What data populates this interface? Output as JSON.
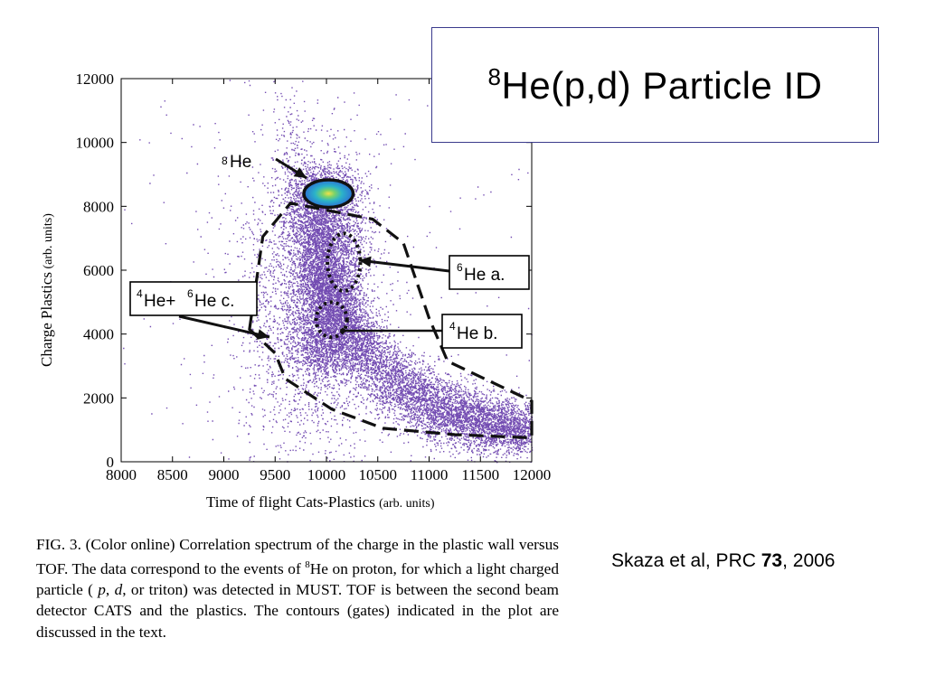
{
  "slide": {
    "title_sup": "8",
    "title_main": "He(p,d) Particle ID",
    "citation_prefix": "Skaza et al, PRC ",
    "citation_volume": "73",
    "citation_suffix": ", 2006"
  },
  "caption": {
    "lead": "FIG. 3.",
    "part1": " (Color online) Correlation spectrum of the charge in the plastic wall versus TOF. The data correspond to the events of ",
    "he_sup": "8",
    "part2": "He on proton, for which a light charged particle ( ",
    "p": "p",
    "comma1": ", ",
    "d": "d",
    "part3": ", or triton) was detected in MUST. TOF is between the second beam detector CATS and the plastics. The contours (gates) indicated in the plot are discussed in the text."
  },
  "chart_data": {
    "type": "scatter",
    "subtype": "2D density histogram",
    "xlabel_big": "Time",
    "xlabel_small": " of flight Cats-Plastics ",
    "xlabel_units": "(arb. units)",
    "ylabel_big": "Charge Plastics",
    "ylabel_units": " (arb. units)",
    "xlim": [
      8000,
      12000
    ],
    "ylim": [
      0,
      12000
    ],
    "x_ticks": [
      8000,
      8500,
      9000,
      9500,
      10000,
      10500,
      11000,
      11500,
      12000
    ],
    "y_ticks": [
      0,
      2000,
      4000,
      6000,
      8000,
      10000,
      12000
    ],
    "point_color": "#5b2da5",
    "peak_colors": [
      "#2c6fd6",
      "#2bb3c9",
      "#7ad36a",
      "#f3e04a"
    ],
    "gate_contour": [
      [
        9250,
        4150
      ],
      [
        9380,
        7050
      ],
      [
        9650,
        8100
      ],
      [
        10450,
        7600
      ],
      [
        10750,
        6850
      ],
      [
        11000,
        4500
      ],
      [
        11180,
        3150
      ],
      [
        12000,
        1900
      ],
      [
        12000,
        750
      ],
      [
        11250,
        850
      ],
      [
        10550,
        1050
      ],
      [
        10050,
        1650
      ],
      [
        9600,
        2600
      ],
      [
        9500,
        3400
      ]
    ],
    "gates": [
      {
        "id": "he8",
        "cx": 10020,
        "cy": 8400,
        "rx": 240,
        "ry": 430,
        "style": "solid"
      },
      {
        "id": "he6_a",
        "cx": 10170,
        "cy": 6250,
        "rx": 160,
        "ry": 900,
        "style": "dotted"
      },
      {
        "id": "he4_b",
        "cx": 10050,
        "cy": 4450,
        "rx": 150,
        "ry": 550,
        "style": "dotted"
      }
    ],
    "annotations": [
      {
        "id": "he8",
        "sup": "8",
        "label": "He"
      },
      {
        "id": "he6-a",
        "sup": "6",
        "label": "He a."
      },
      {
        "id": "he4-b",
        "sup": "4",
        "label": "He b."
      },
      {
        "id": "he4-he6-c",
        "sup1": "4",
        "mid": "He+",
        "sup2": "6",
        "label": "He c."
      }
    ]
  }
}
